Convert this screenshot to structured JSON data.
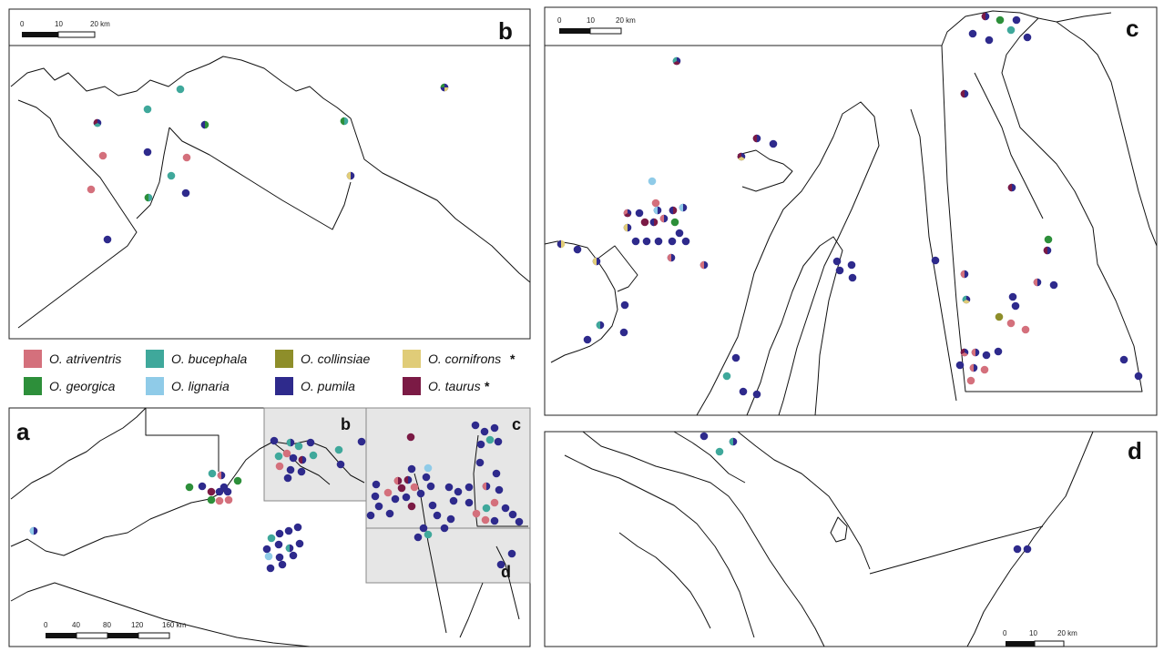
{
  "panels": [
    {
      "id": "b",
      "label": "b",
      "scale": [
        "0",
        "10",
        "20 km"
      ]
    },
    {
      "id": "c",
      "label": "c",
      "scale": [
        "0",
        "10",
        "20 km"
      ]
    },
    {
      "id": "a",
      "label": "a",
      "scale": [
        "0",
        "40",
        "80",
        "120",
        "160 km"
      ]
    },
    {
      "id": "d",
      "label": "d",
      "scale": [
        "0",
        "10",
        "20 km"
      ]
    }
  ],
  "inset_labels": [
    "b",
    "c",
    "d"
  ],
  "legend": [
    {
      "name": "O. atriventris",
      "color": "#d4707c",
      "star": ""
    },
    {
      "name": "O. bucephala",
      "color": "#3fa89b",
      "star": ""
    },
    {
      "name": "O. collinsiae",
      "color": "#8e8e2a",
      "star": ""
    },
    {
      "name": "O. cornifrons",
      "color": "#e0cc78",
      "star": "*"
    },
    {
      "name": "O. georgica",
      "color": "#2d8f3a",
      "star": ""
    },
    {
      "name": "O. lignaria",
      "color": "#8fcbe8",
      "star": ""
    },
    {
      "name": "O. pumila",
      "color": "#2e2a8c",
      "star": ""
    },
    {
      "name": "O. taurus",
      "color": "#7b1a45",
      "star": "*"
    }
  ]
}
